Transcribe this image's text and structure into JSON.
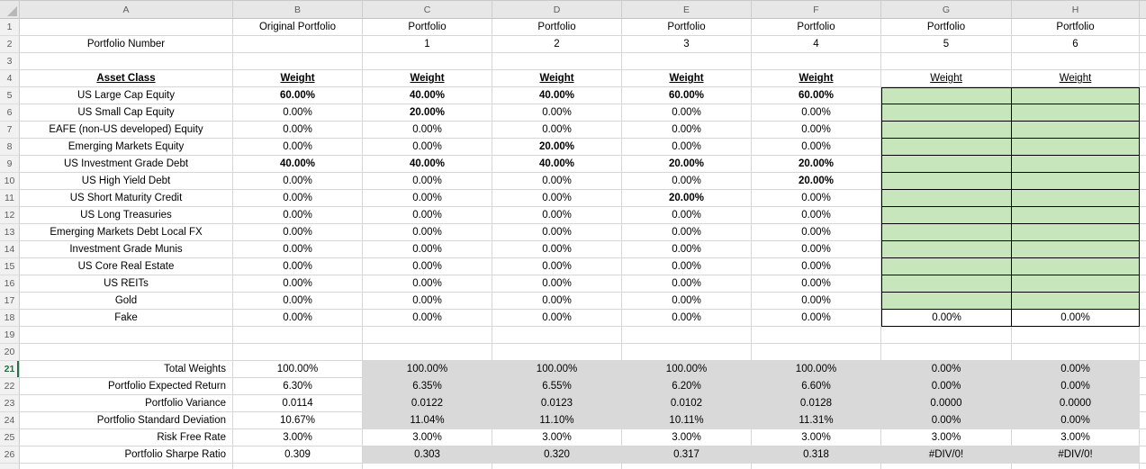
{
  "sheet": {
    "column_headers": [
      "A",
      "B",
      "C",
      "D",
      "E",
      "F",
      "G",
      "H"
    ],
    "row_count": 26,
    "active_row": 21
  },
  "colors": {
    "green_fill": "#c7e6bc",
    "gray_fill": "#d9d9d9",
    "accent_green": "#217346",
    "error_indicator_green": "#2e9b4e"
  },
  "table": {
    "row1": {
      "original_label": "Original Portfolio",
      "portfolio_label": "Portfolio"
    },
    "row2": {
      "label": "Portfolio Number",
      "numbers": [
        "1",
        "2",
        "3",
        "4",
        "5",
        "6"
      ]
    },
    "row4": {
      "asset_class": "Asset Class",
      "weight": "Weight"
    },
    "assets": [
      {
        "name": "US Large Cap Equity",
        "weights": [
          "60.00%",
          "40.00%",
          "40.00%",
          "60.00%",
          "60.00%",
          null,
          null
        ]
      },
      {
        "name": "US Small Cap Equity",
        "weights": [
          "0.00%",
          "20.00%",
          "0.00%",
          "0.00%",
          "0.00%",
          null,
          null
        ]
      },
      {
        "name": "EAFE (non-US developed) Equity",
        "weights": [
          "0.00%",
          "0.00%",
          "0.00%",
          "0.00%",
          "0.00%",
          null,
          null
        ]
      },
      {
        "name": "Emerging Markets Equity",
        "weights": [
          "0.00%",
          "0.00%",
          "20.00%",
          "0.00%",
          "0.00%",
          null,
          null
        ]
      },
      {
        "name": "US Investment Grade Debt",
        "weights": [
          "40.00%",
          "40.00%",
          "40.00%",
          "20.00%",
          "20.00%",
          null,
          null
        ]
      },
      {
        "name": "US High Yield Debt",
        "weights": [
          "0.00%",
          "0.00%",
          "0.00%",
          "0.00%",
          "20.00%",
          null,
          null
        ]
      },
      {
        "name": "US Short Maturity Credit",
        "weights": [
          "0.00%",
          "0.00%",
          "0.00%",
          "20.00%",
          "0.00%",
          null,
          null
        ]
      },
      {
        "name": "US Long Treasuries",
        "weights": [
          "0.00%",
          "0.00%",
          "0.00%",
          "0.00%",
          "0.00%",
          null,
          null
        ]
      },
      {
        "name": "Emerging Markets Debt Local FX",
        "weights": [
          "0.00%",
          "0.00%",
          "0.00%",
          "0.00%",
          "0.00%",
          null,
          null
        ]
      },
      {
        "name": "Investment Grade Munis",
        "weights": [
          "0.00%",
          "0.00%",
          "0.00%",
          "0.00%",
          "0.00%",
          null,
          null
        ]
      },
      {
        "name": "US Core Real Estate",
        "weights": [
          "0.00%",
          "0.00%",
          "0.00%",
          "0.00%",
          "0.00%",
          null,
          null
        ]
      },
      {
        "name": "US REITs",
        "weights": [
          "0.00%",
          "0.00%",
          "0.00%",
          "0.00%",
          "0.00%",
          null,
          null
        ]
      },
      {
        "name": "Gold",
        "weights": [
          "0.00%",
          "0.00%",
          "0.00%",
          "0.00%",
          "0.00%",
          null,
          null
        ]
      },
      {
        "name": "Fake",
        "weights": [
          "0.00%",
          "0.00%",
          "0.00%",
          "0.00%",
          "0.00%",
          "0.00%",
          "0.00%"
        ]
      }
    ],
    "summary": [
      {
        "label": "Total Weights",
        "values": [
          "100.00%",
          "100.00%",
          "100.00%",
          "100.00%",
          "100.00%",
          "0.00%",
          "0.00%"
        ],
        "shaded": true
      },
      {
        "label": "Portfolio Expected Return",
        "values": [
          "6.30%",
          "6.35%",
          "6.55%",
          "6.20%",
          "6.60%",
          "0.00%",
          "0.00%"
        ],
        "shaded": true
      },
      {
        "label": "Portfolio Variance",
        "values": [
          "0.0114",
          "0.0122",
          "0.0123",
          "0.0102",
          "0.0128",
          "0.0000",
          "0.0000"
        ],
        "shaded": true
      },
      {
        "label": "Portfolio Standard Deviation",
        "values": [
          "10.67%",
          "11.04%",
          "11.10%",
          "10.11%",
          "11.31%",
          "0.00%",
          "0.00%"
        ],
        "shaded": true
      },
      {
        "label": "Risk Free Rate",
        "values": [
          "3.00%",
          "3.00%",
          "3.00%",
          "3.00%",
          "3.00%",
          "3.00%",
          "3.00%"
        ],
        "shaded": false
      },
      {
        "label": "Portfolio Sharpe Ratio",
        "values": [
          "0.309",
          "0.303",
          "0.320",
          "0.317",
          "0.318",
          "#DIV/0!",
          "#DIV/0!"
        ],
        "shaded": true,
        "error_cols": [
          5,
          6
        ]
      }
    ]
  }
}
